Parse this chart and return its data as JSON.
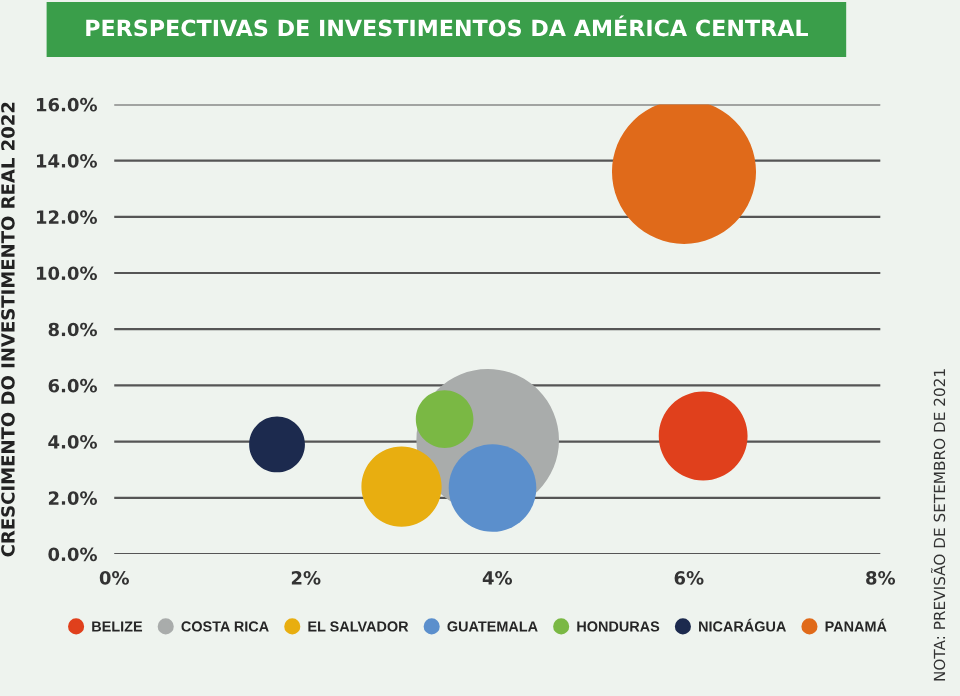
{
  "chart_data": {
    "type": "bubble",
    "title": "PERSPECTIVAS DE INVESTIMENTOS DA AMÉRICA CENTRAL",
    "ylabel": "CRESCIMENTO DO INVESTIMENTO REAL 2022",
    "series": [
      {
        "name": "BELIZE",
        "color": "#e0401c",
        "x": [
          6.15
        ],
        "values": [
          4.2
        ],
        "sizes": [
          0.38
        ]
      },
      {
        "name": "COSTA RICA",
        "color": "#a9acab",
        "x": [
          3.9
        ],
        "values": [
          4.05
        ],
        "sizes": [
          0.98
        ]
      },
      {
        "name": "EL SALVADOR",
        "color": "#e8ae10",
        "x": [
          3.0
        ],
        "values": [
          2.4
        ],
        "sizes": [
          0.31
        ]
      },
      {
        "name": "GUATEMALA",
        "color": "#5b8fcc",
        "x": [
          3.95
        ],
        "values": [
          2.35
        ],
        "sizes": [
          0.37
        ]
      },
      {
        "name": "HONDURAS",
        "color": "#7ab844",
        "x": [
          3.45
        ],
        "values": [
          4.8
        ],
        "sizes": [
          0.16
        ]
      },
      {
        "name": "NICARÁGUA",
        "color": "#1c2a4e",
        "x": [
          1.7
        ],
        "values": [
          3.9
        ],
        "sizes": [
          0.15
        ]
      },
      {
        "name": "PANAMÁ",
        "color": "#e06a1a",
        "x": [
          5.95
        ],
        "values": [
          13.6
        ],
        "sizes": [
          1
        ]
      }
    ],
    "xlim": [
      0,
      8
    ],
    "xticks": [
      {
        "value": 0,
        "label": "0%"
      },
      {
        "value": 2,
        "label": "2%"
      },
      {
        "value": 4,
        "label": "4%"
      },
      {
        "value": 6,
        "label": "6%"
      },
      {
        "value": 8,
        "label": "8%"
      }
    ],
    "ylim": [
      0,
      16
    ],
    "yticks": [
      {
        "value": 0,
        "label": "0.0%"
      },
      {
        "value": 2,
        "label": "2.0%"
      },
      {
        "value": 4,
        "label": "4.0%"
      },
      {
        "value": 6,
        "label": "6.0%"
      },
      {
        "value": 8,
        "label": "8.0%"
      },
      {
        "value": 10,
        "label": "10.0%"
      },
      {
        "value": 12,
        "label": "12.0%"
      },
      {
        "value": 14,
        "label": "14.0%"
      },
      {
        "value": 16,
        "label": "16.0%"
      }
    ],
    "grid": "y",
    "legend": "bottom",
    "marker": "circle",
    "annotations": [
      "NOTA: PREVISÃO DE SETEMBRO DE 2021"
    ]
  }
}
